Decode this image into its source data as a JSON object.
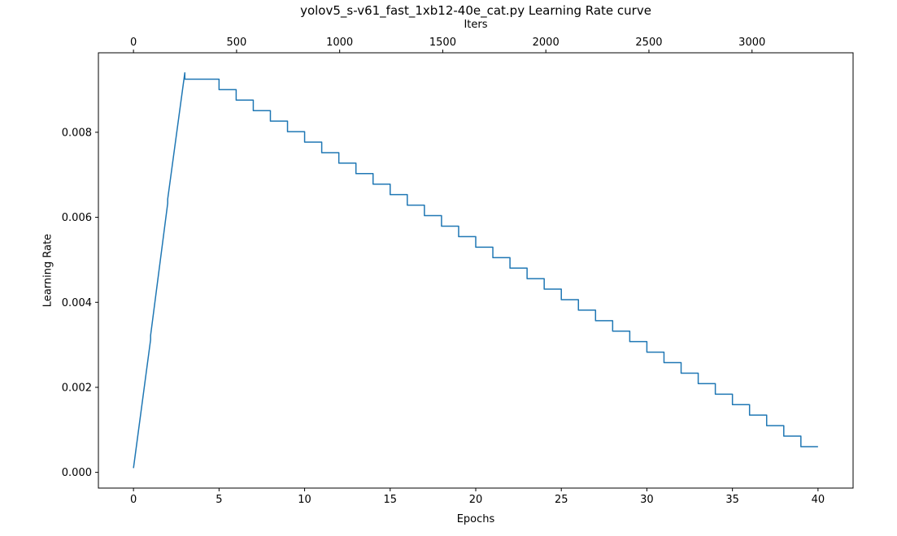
{
  "chart_data": {
    "type": "line",
    "title": "yolov5_s-v61_fast_1xb12-40e_cat.py Learning Rate curve",
    "xlabel": "Epochs",
    "ylabel": "Learning Rate",
    "top_xlabel": "Iters",
    "line_color": "#1f77b4",
    "axis_color": "#000000",
    "grid": false,
    "legend": "none",
    "xlim": [
      -2.05,
      42.05
    ],
    "ylim": [
      -0.00037,
      0.00987
    ],
    "x_ticks": [
      0,
      5,
      10,
      15,
      20,
      25,
      30,
      35,
      40
    ],
    "x_tick_labels": [
      "0",
      "5",
      "10",
      "15",
      "20",
      "25",
      "30",
      "35",
      "40"
    ],
    "y_ticks": [
      0.0,
      0.002,
      0.004,
      0.006,
      0.008
    ],
    "y_tick_labels": [
      "0.000",
      "0.002",
      "0.004",
      "0.006",
      "0.008"
    ],
    "top_ticks": [
      0,
      500,
      1000,
      1500,
      2000,
      2500,
      3000
    ],
    "top_tick_labels": [
      "0",
      "500",
      "1000",
      "1500",
      "2000",
      "2500",
      "3000"
    ],
    "iters_per_epoch": 83,
    "warmup_points": [
      [
        0,
        0.0001
      ],
      [
        1,
        0.00312
      ],
      [
        1,
        0.00322
      ],
      [
        2,
        0.00633
      ],
      [
        2,
        0.00643
      ],
      [
        3,
        0.0094
      ]
    ],
    "steps": [
      [
        3,
        0.00925
      ],
      [
        5,
        0.009003
      ],
      [
        6,
        0.008756
      ],
      [
        7,
        0.008509
      ],
      [
        8,
        0.008262
      ],
      [
        9,
        0.008015
      ],
      [
        10,
        0.007768
      ],
      [
        11,
        0.007521
      ],
      [
        12,
        0.007274
      ],
      [
        13,
        0.007027
      ],
      [
        14,
        0.00678
      ],
      [
        15,
        0.006533
      ],
      [
        16,
        0.006286
      ],
      [
        17,
        0.006039
      ],
      [
        18,
        0.005792
      ],
      [
        19,
        0.005545
      ],
      [
        20,
        0.005298
      ],
      [
        21,
        0.005051
      ],
      [
        22,
        0.004804
      ],
      [
        23,
        0.004557
      ],
      [
        24,
        0.00431
      ],
      [
        25,
        0.004063
      ],
      [
        26,
        0.003816
      ],
      [
        27,
        0.003569
      ],
      [
        28,
        0.003322
      ],
      [
        29,
        0.003075
      ],
      [
        30,
        0.002828
      ],
      [
        31,
        0.002581
      ],
      [
        32,
        0.002334
      ],
      [
        33,
        0.002087
      ],
      [
        34,
        0.00184
      ],
      [
        35,
        0.001593
      ],
      [
        36,
        0.001346
      ],
      [
        37,
        0.001099
      ],
      [
        38,
        0.000852
      ],
      [
        39,
        0.000605
      ]
    ],
    "x_end": 40
  }
}
